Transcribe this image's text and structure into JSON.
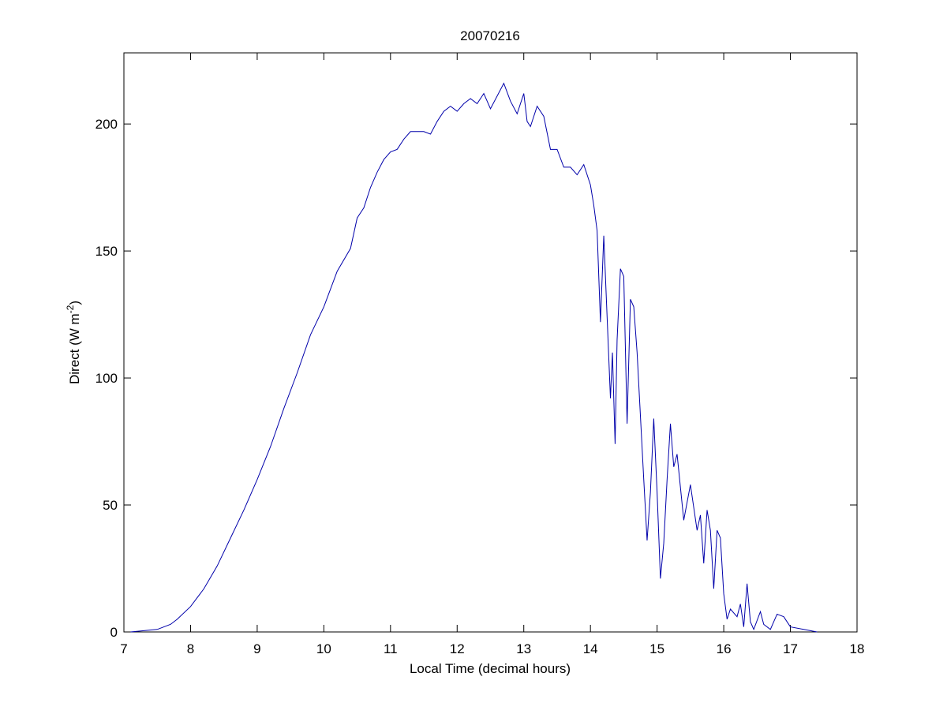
{
  "chart_data": {
    "type": "line",
    "title": "20070216",
    "xlabel": "Local Time (decimal hours)",
    "ylabel": {
      "base": "Direct (W m",
      "sup": "-2",
      "end": ")"
    },
    "xlim": [
      7,
      18
    ],
    "xticks": [
      7,
      8,
      9,
      10,
      11,
      12,
      13,
      14,
      15,
      16,
      17,
      18
    ],
    "ylim": [
      0,
      228
    ],
    "yticks": [
      0,
      50,
      100,
      150,
      200
    ],
    "series": [
      {
        "color": "#0000aa",
        "x": [
          7.1,
          7.5,
          7.7,
          7.8,
          8.0,
          8.2,
          8.4,
          8.6,
          8.8,
          9.0,
          9.2,
          9.4,
          9.6,
          9.8,
          10.0,
          10.2,
          10.4,
          10.5,
          10.6,
          10.7,
          10.8,
          10.9,
          11.0,
          11.1,
          11.2,
          11.3,
          11.4,
          11.5,
          11.6,
          11.7,
          11.8,
          11.9,
          12.0,
          12.1,
          12.2,
          12.3,
          12.4,
          12.5,
          12.6,
          12.7,
          12.8,
          12.9,
          13.0,
          13.05,
          13.1,
          13.2,
          13.3,
          13.4,
          13.5,
          13.6,
          13.7,
          13.8,
          13.9,
          14.0,
          14.05,
          14.1,
          14.15,
          14.2,
          14.25,
          14.3,
          14.33,
          14.37,
          14.4,
          14.45,
          14.5,
          14.55,
          14.6,
          14.65,
          14.7,
          14.8,
          14.85,
          14.9,
          14.95,
          15.0,
          15.05,
          15.1,
          15.15,
          15.2,
          15.25,
          15.3,
          15.4,
          15.5,
          15.6,
          15.65,
          15.7,
          15.75,
          15.8,
          15.85,
          15.9,
          15.95,
          16.0,
          16.05,
          16.1,
          16.2,
          16.25,
          16.3,
          16.35,
          16.4,
          16.45,
          16.55,
          16.6,
          16.7,
          16.8,
          16.9,
          17.0,
          17.2,
          17.4
        ],
        "values": [
          0,
          1,
          3,
          5,
          10,
          17,
          26,
          37,
          48,
          60,
          73,
          88,
          102,
          117,
          128,
          142,
          151,
          163,
          167,
          175,
          181,
          186,
          189,
          190,
          194,
          197,
          197,
          197,
          196,
          201,
          205,
          207,
          205,
          208,
          210,
          208,
          212,
          206,
          211,
          216,
          209,
          204,
          212,
          201,
          199,
          207,
          203,
          190,
          190,
          183,
          183,
          180,
          184,
          176,
          168,
          158,
          122,
          156,
          124,
          92,
          110,
          74,
          115,
          143,
          140,
          82,
          131,
          128,
          110,
          60,
          36,
          55,
          84,
          55,
          21,
          35,
          60,
          82,
          65,
          70,
          44,
          58,
          40,
          46,
          27,
          48,
          40,
          17,
          40,
          37,
          15,
          5,
          9,
          6,
          11,
          2,
          19,
          4,
          1,
          8,
          3,
          1,
          7,
          6,
          2,
          1,
          0
        ]
      }
    ]
  }
}
